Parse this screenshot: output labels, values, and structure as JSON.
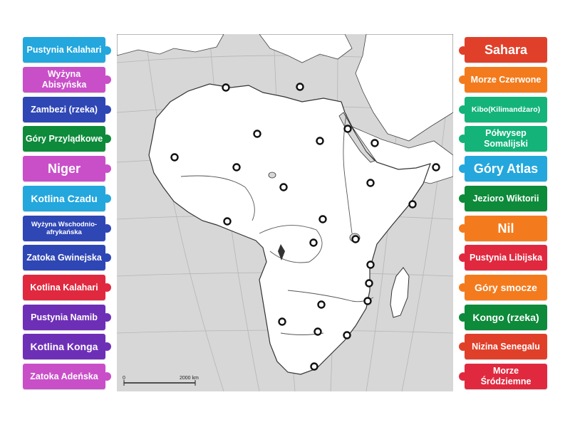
{
  "map": {
    "scale_label": "2000 km",
    "scale_zero": "0"
  },
  "left_labels": [
    {
      "text": "Pustynia Kalahari",
      "color": "#23a7dd"
    },
    {
      "text": "Wyżyna Abisyńska",
      "color": "#c94fc9"
    },
    {
      "text": "Zambezi (rzeka)",
      "color": "#2f46b5"
    },
    {
      "text": "Góry Przylądkowe",
      "color": "#0d8a3a"
    },
    {
      "text": "Niger",
      "color": "#c94fc9"
    },
    {
      "text": "Kotlina Czadu",
      "color": "#23a7dd"
    },
    {
      "text": "Wyżyna Wschodnio-afrykańska",
      "color": "#2f46b5"
    },
    {
      "text": "Zatoka Gwinejska",
      "color": "#2f46b5"
    },
    {
      "text": "Kotlina Kalahari",
      "color": "#e0293f"
    },
    {
      "text": "Pustynia Namib",
      "color": "#6e2fb7"
    },
    {
      "text": "Kotlina Konga",
      "color": "#6e2fb7"
    },
    {
      "text": "Zatoka Adeńska",
      "color": "#c94fc9"
    }
  ],
  "right_labels": [
    {
      "text": "Sahara",
      "color": "#e0402a"
    },
    {
      "text": "Morze Czerwone",
      "color": "#f37b1d"
    },
    {
      "text": "Kibo(Kilimandżaro)",
      "color": "#13b37a"
    },
    {
      "text": "Półwysep Somalijski",
      "color": "#13b37a"
    },
    {
      "text": "Góry Atlas",
      "color": "#23a7dd"
    },
    {
      "text": "Jezioro Wiktorii",
      "color": "#0d8a3a"
    },
    {
      "text": "Nil",
      "color": "#f37b1d"
    },
    {
      "text": "Pustynia Libijska",
      "color": "#e0293f"
    },
    {
      "text": "Góry smocze",
      "color": "#f37b1d"
    },
    {
      "text": "Kongo (rzeka)",
      "color": "#0d8a3a"
    },
    {
      "text": "Nizina Senegalu",
      "color": "#e0402a"
    },
    {
      "text": "Morze Śródziemne",
      "color": "#e0293f"
    }
  ]
}
